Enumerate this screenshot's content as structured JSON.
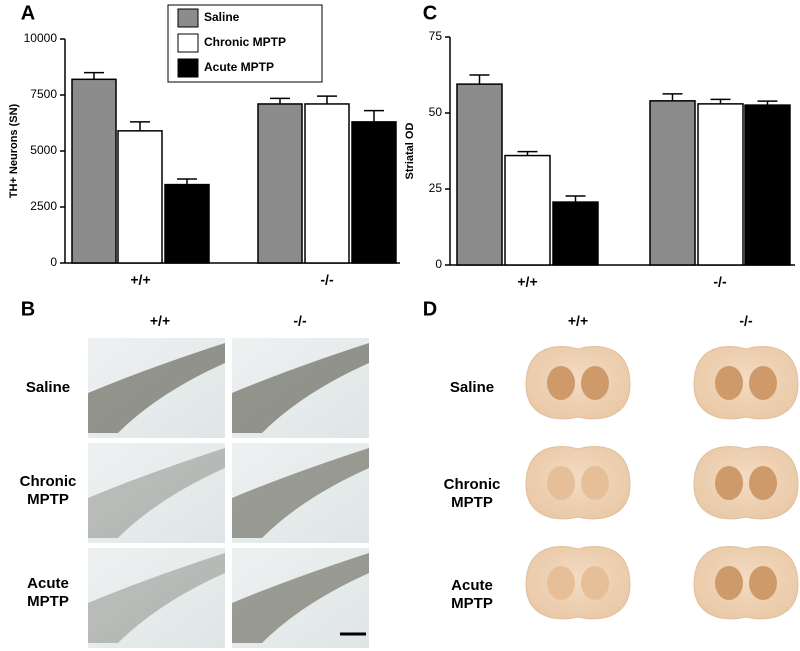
{
  "chart_data": [
    {
      "type": "bar",
      "panel": "A",
      "y_label": "TH+ Neurons (SN)",
      "categories": [
        "+/+",
        "-/-"
      ],
      "ylim": [
        0,
        10000
      ],
      "yticks": [
        0,
        2500,
        5000,
        7500,
        10000
      ],
      "series": [
        {
          "name": "Saline",
          "color": "#8c8c8c",
          "values": [
            8200,
            7100
          ],
          "errors": [
            300,
            250
          ]
        },
        {
          "name": "Chronic MPTP",
          "color": "#ffffff",
          "values": [
            5900,
            7100
          ],
          "errors": [
            400,
            350
          ]
        },
        {
          "name": "Acute MPTP",
          "color": "#000000",
          "values": [
            3500,
            6300
          ],
          "errors": [
            250,
            500
          ]
        }
      ]
    },
    {
      "type": "bar",
      "panel": "C",
      "y_label": "Striatal OD",
      "categories": [
        "+/+",
        "-/-"
      ],
      "ylim": [
        0,
        75
      ],
      "yticks": [
        0,
        25,
        50,
        75
      ],
      "series": [
        {
          "color": "#8c8c8c",
          "values": [
            59.5,
            54
          ],
          "errors": [
            3,
            2.3
          ]
        },
        {
          "color": "#ffffff",
          "values": [
            36,
            53
          ],
          "errors": [
            1.3,
            1.5
          ]
        },
        {
          "color": "#000000",
          "values": [
            20.7,
            52.6
          ],
          "errors": [
            2,
            1.3
          ]
        }
      ]
    }
  ],
  "histology_panels": [
    {
      "panel": "B",
      "columns": [
        "+/+",
        "-/-"
      ],
      "rows": [
        [
          "Saline"
        ],
        [
          "Chronic",
          "MPTP"
        ],
        [
          "Acute",
          "MPTP"
        ]
      ]
    },
    {
      "panel": "D",
      "columns": [
        "+/+",
        "-/-"
      ],
      "rows": [
        [
          "Saline"
        ],
        [
          "Chronic",
          "MPTP"
        ],
        [
          "Acute",
          "MPTP"
        ]
      ]
    }
  ]
}
